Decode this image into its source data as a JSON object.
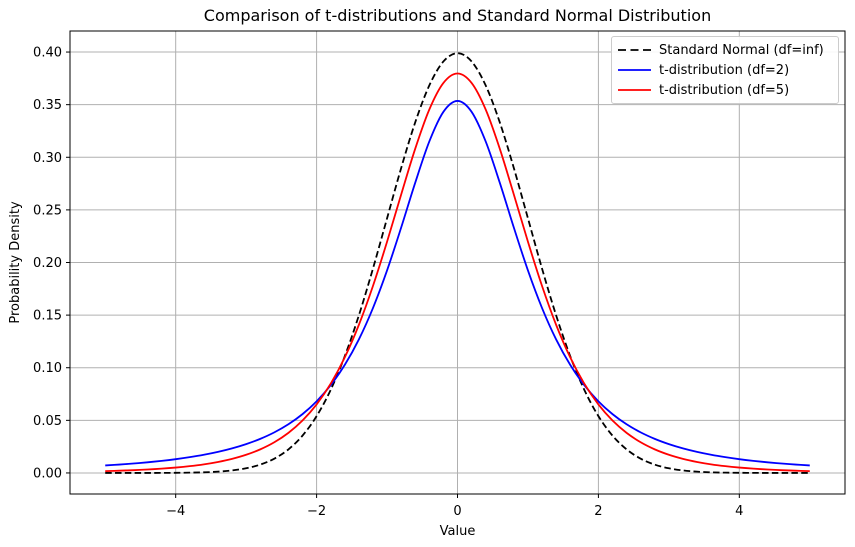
{
  "figure": {
    "background": "#ffffff",
    "grid_color": "#b0b0b0",
    "spine_color": "#000000"
  },
  "chart_data": {
    "type": "line",
    "title": "Comparison of t-distributions and Standard Normal Distribution",
    "xlabel": "Value",
    "ylabel": "Probability Density",
    "xlim": [
      -5.5,
      5.5
    ],
    "ylim": [
      -0.02,
      0.42
    ],
    "grid": true,
    "legend_position": "upper right",
    "xticks": {
      "values": [
        -4,
        -2,
        0,
        2,
        4
      ],
      "labels": [
        "−4",
        "−2",
        "0",
        "2",
        "4"
      ]
    },
    "yticks": {
      "values": [
        0.0,
        0.05,
        0.1,
        0.15,
        0.2,
        0.25,
        0.3,
        0.35,
        0.4
      ],
      "labels": [
        "0.00",
        "0.05",
        "0.10",
        "0.15",
        "0.20",
        "0.25",
        "0.30",
        "0.35",
        "0.40"
      ]
    },
    "x": [
      -5.0,
      -4.8,
      -4.6,
      -4.4,
      -4.2,
      -4.0,
      -3.8,
      -3.6,
      -3.4,
      -3.2,
      -3.0,
      -2.8,
      -2.6,
      -2.4,
      -2.2,
      -2.0,
      -1.8,
      -1.6,
      -1.4,
      -1.2,
      -1.0,
      -0.8,
      -0.6,
      -0.4,
      -0.2,
      0.0,
      0.2,
      0.4,
      0.6,
      0.8,
      1.0,
      1.2,
      1.4,
      1.6,
      1.8,
      2.0,
      2.2,
      2.4,
      2.6,
      2.8,
      3.0,
      3.2,
      3.4,
      3.6,
      3.8,
      4.0,
      4.2,
      4.4,
      4.6,
      4.8,
      5.0
    ],
    "series": [
      {
        "name": "Standard Normal (df=inf)",
        "slug": "standard-normal-curve",
        "color": "#000000",
        "dash": "dashed",
        "values": [
          1.5e-06,
          4e-06,
          1e-05,
          2.5e-05,
          6e-05,
          0.000134,
          0.000292,
          0.000612,
          0.001232,
          0.002384,
          0.004432,
          0.007915,
          0.013583,
          0.022395,
          0.035475,
          0.053991,
          0.07895,
          0.110921,
          0.149727,
          0.194186,
          0.241971,
          0.289692,
          0.333225,
          0.36827,
          0.391043,
          0.398942,
          0.391043,
          0.36827,
          0.333225,
          0.289692,
          0.241971,
          0.194186,
          0.149727,
          0.110921,
          0.07895,
          0.053991,
          0.035475,
          0.022395,
          0.013583,
          0.007915,
          0.004432,
          0.002384,
          0.001232,
          0.000612,
          0.000292,
          0.000134,
          6e-05,
          2.5e-05,
          1e-05,
          4e-06,
          1.5e-06
        ]
      },
      {
        "name": "t-distribution (df=2)",
        "slug": "t-df2-curve",
        "color": "#0000ff",
        "dash": "solid",
        "values": [
          0.007127,
          0.007981,
          0.008972,
          0.01013,
          0.01149,
          0.013095,
          0.015002,
          0.017283,
          0.020027,
          0.023351,
          0.02741,
          0.032399,
          0.03857,
          0.046261,
          0.055903,
          0.068041,
          0.083374,
          0.102699,
          0.126897,
          0.156729,
          0.19245,
          0.233129,
          0.275823,
          0.315013,
          0.343208,
          0.353553,
          0.343208,
          0.315013,
          0.275823,
          0.233129,
          0.19245,
          0.156729,
          0.126897,
          0.102699,
          0.083374,
          0.068041,
          0.055903,
          0.046261,
          0.03857,
          0.032399,
          0.02741,
          0.023351,
          0.020027,
          0.017283,
          0.015002,
          0.013095,
          0.01149,
          0.01013,
          0.008972,
          0.007981,
          0.007127
        ]
      },
      {
        "name": "t-distribution (df=5)",
        "slug": "t-df5-curve",
        "color": "#ff0000",
        "dash": "solid",
        "values": [
          0.001757,
          0.002152,
          0.00265,
          0.003282,
          0.004089,
          0.005124,
          0.006458,
          0.008191,
          0.010449,
          0.013406,
          0.017292,
          0.022416,
          0.029171,
          0.038088,
          0.049803,
          0.065091,
          0.084806,
          0.109819,
          0.14074,
          0.177663,
          0.21968,
          0.264487,
          0.30814,
          0.345376,
          0.370641,
          0.379607,
          0.370641,
          0.345376,
          0.30814,
          0.264487,
          0.21968,
          0.177663,
          0.14074,
          0.109819,
          0.084806,
          0.065091,
          0.049803,
          0.038088,
          0.029171,
          0.022416,
          0.017292,
          0.013406,
          0.010449,
          0.008191,
          0.006458,
          0.005124,
          0.004089,
          0.003282,
          0.00265,
          0.002152,
          0.001757
        ]
      }
    ]
  }
}
